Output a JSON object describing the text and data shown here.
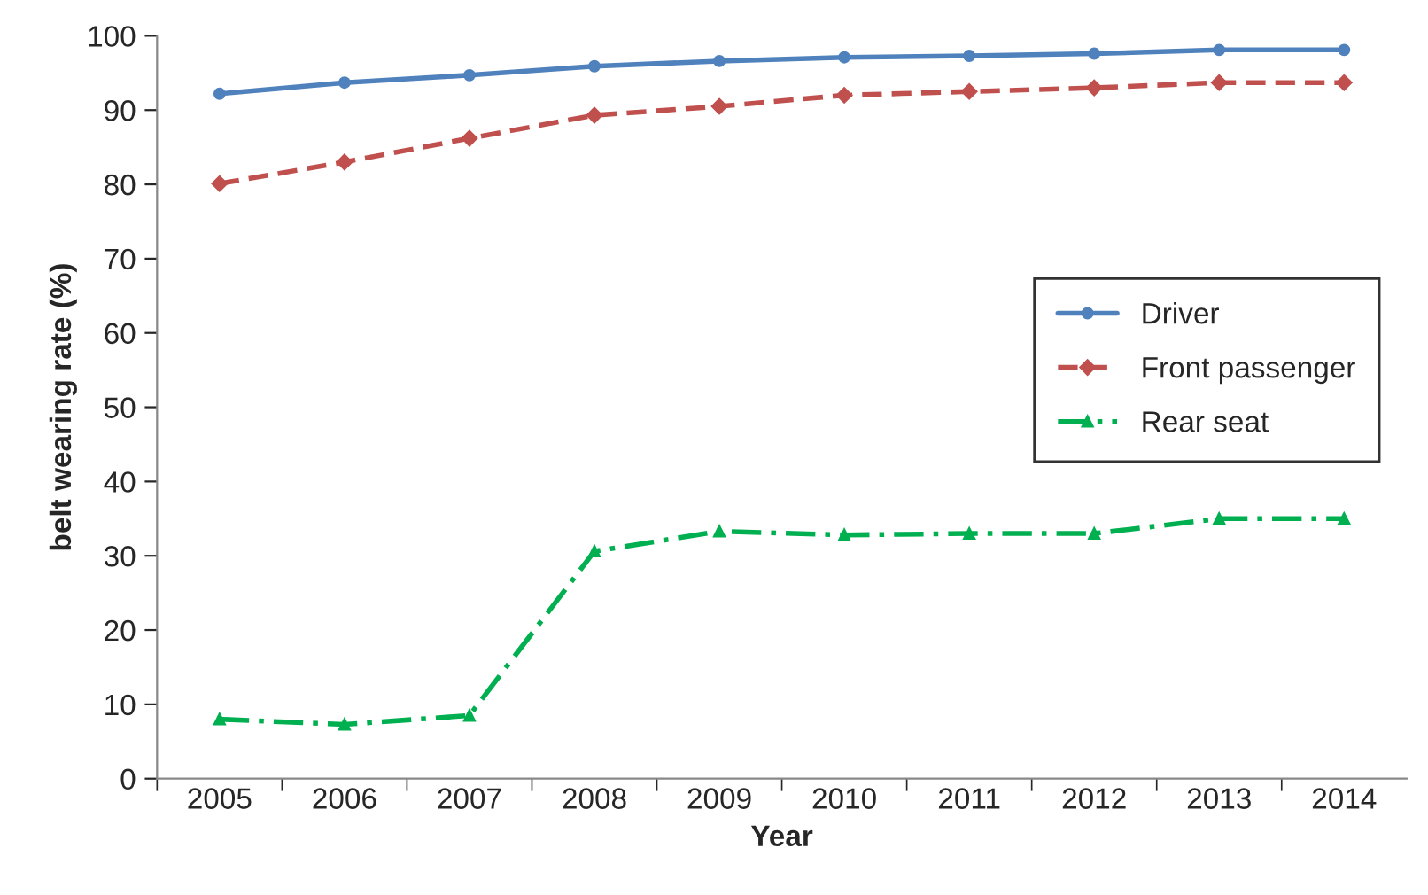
{
  "chart_data": {
    "type": "line",
    "xlabel": "Year",
    "ylabel": "belt wearing rate (%)",
    "categories": [
      "2005",
      "2006",
      "2007",
      "2008",
      "2009",
      "2010",
      "2011",
      "2012",
      "2013",
      "2014"
    ],
    "series": [
      {
        "name": "Driver",
        "color": "#4f81bd",
        "marker": "circle",
        "line_style": "solid",
        "values": [
          92.2,
          93.7,
          94.7,
          95.9,
          96.6,
          97.1,
          97.3,
          97.6,
          98.1,
          98.1
        ]
      },
      {
        "name": "Front passenger",
        "color": "#c0504d",
        "marker": "diamond",
        "line_style": "dashed",
        "values": [
          80.1,
          83.0,
          86.2,
          89.3,
          90.5,
          92.0,
          92.5,
          93.0,
          93.7,
          93.7
        ]
      },
      {
        "name": "Rear seat",
        "color": "#00b050",
        "marker": "triangle",
        "line_style": "dashdot",
        "values": [
          8.0,
          7.3,
          8.5,
          30.6,
          33.3,
          32.8,
          33.0,
          33.0,
          35.0,
          35.0
        ]
      }
    ],
    "ylim": [
      0,
      100
    ],
    "yticks": [
      0,
      10,
      20,
      30,
      40,
      50,
      60,
      70,
      80,
      90,
      100
    ],
    "grid": false,
    "legend": "center right"
  }
}
